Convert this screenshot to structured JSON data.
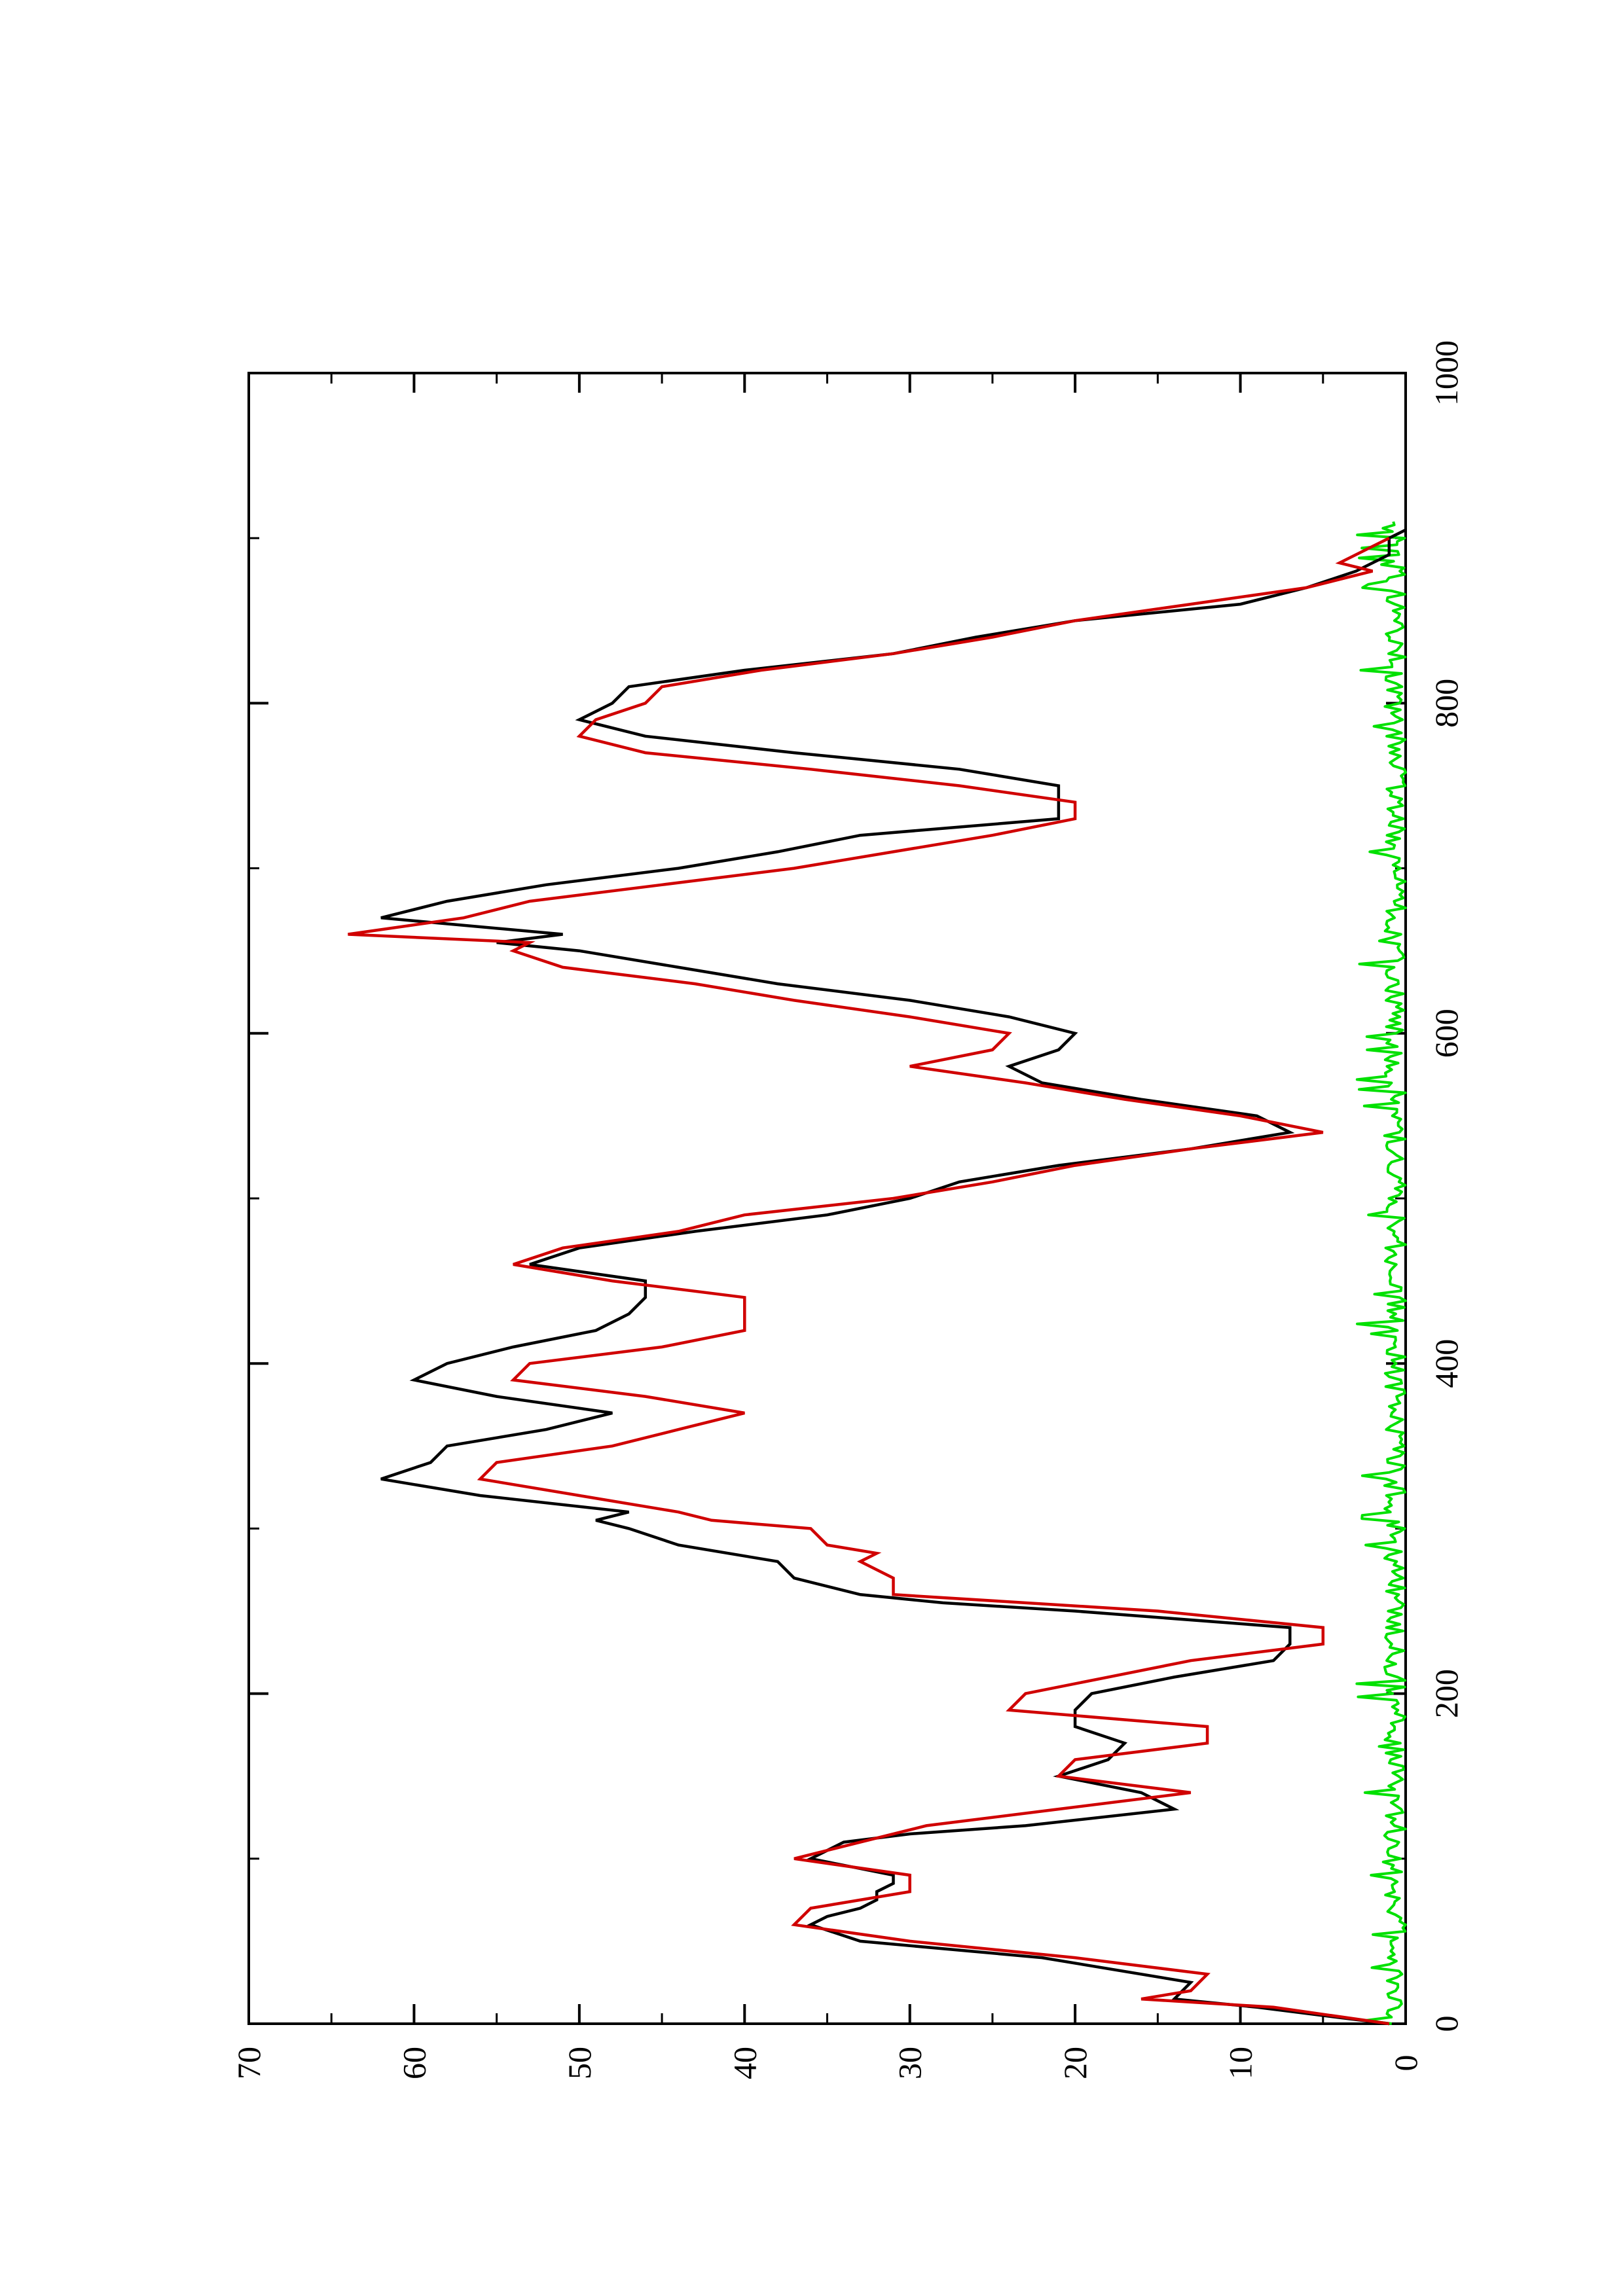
{
  "chart_data": {
    "type": "line",
    "orientation": "rotated-90-ccw",
    "title": "",
    "xlabel": "",
    "ylabel": "",
    "xlim": [
      0,
      1000
    ],
    "ylim": [
      0,
      70
    ],
    "x_ticks": [
      0,
      200,
      400,
      600,
      800,
      1000
    ],
    "x_tick_labels": [
      "0",
      "200",
      "400",
      "600",
      "800",
      "1000"
    ],
    "x_minor_ticks": [
      100,
      300,
      500,
      700,
      900
    ],
    "y_ticks": [
      0,
      10,
      20,
      30,
      40,
      50,
      60,
      70
    ],
    "y_tick_labels": [
      "0",
      "10",
      "20",
      "30",
      "40",
      "50",
      "60",
      "70"
    ],
    "y_minor_ticks": [
      5,
      15,
      25,
      35,
      45,
      55,
      65
    ],
    "grid": false,
    "legend": "none",
    "series": [
      {
        "color": "#000000",
        "x": [
          0,
          10,
          15,
          25,
          40,
          50,
          60,
          65,
          70,
          75,
          80,
          85,
          90,
          100,
          110,
          115,
          120,
          130,
          140,
          150,
          160,
          170,
          180,
          190,
          200,
          210,
          220,
          230,
          240,
          250,
          255,
          260,
          270,
          280,
          290,
          300,
          305,
          310,
          320,
          330,
          340,
          350,
          360,
          370,
          380,
          390,
          400,
          410,
          420,
          430,
          440,
          450,
          460,
          470,
          480,
          490,
          500,
          510,
          520,
          530,
          540,
          550,
          560,
          570,
          580,
          590,
          600,
          610,
          620,
          630,
          640,
          650,
          655,
          660,
          670,
          680,
          690,
          700,
          710,
          720,
          730,
          740,
          750,
          760,
          770,
          780,
          790,
          800,
          810,
          820,
          830,
          840,
          850,
          860,
          870,
          880,
          885,
          890,
          900,
          905
        ],
        "y": [
          1,
          9,
          14,
          13,
          22,
          33,
          36,
          35,
          33,
          32,
          32,
          31,
          31,
          36,
          34,
          30,
          23,
          14,
          16,
          21,
          18,
          17,
          20,
          20,
          19,
          14,
          8,
          7,
          7,
          20,
          28,
          33,
          37,
          38,
          44,
          47,
          49,
          47,
          56,
          62,
          59,
          58,
          52,
          48,
          55,
          60,
          58,
          54,
          49,
          47,
          46,
          46,
          53,
          50,
          43,
          35,
          30,
          27,
          21,
          13,
          7,
          9,
          16,
          22,
          24,
          21,
          20,
          24,
          30,
          38,
          44,
          50,
          55,
          51,
          62,
          58,
          52,
          44,
          38,
          33,
          21,
          21,
          21,
          27,
          37,
          46,
          50,
          48,
          47,
          40,
          31,
          26,
          20,
          10,
          6,
          3,
          2,
          1,
          1,
          0
        ]
      },
      {
        "color": "#d00000",
        "x": [
          0,
          10,
          15,
          20,
          30,
          40,
          50,
          60,
          70,
          80,
          90,
          100,
          110,
          120,
          130,
          140,
          150,
          160,
          170,
          180,
          190,
          200,
          210,
          220,
          230,
          240,
          250,
          260,
          270,
          280,
          285,
          290,
          300,
          305,
          310,
          320,
          330,
          340,
          350,
          360,
          370,
          380,
          390,
          400,
          410,
          420,
          430,
          440,
          450,
          460,
          470,
          480,
          490,
          500,
          510,
          520,
          530,
          540,
          550,
          560,
          570,
          580,
          590,
          600,
          610,
          620,
          630,
          640,
          650,
          655,
          660,
          670,
          680,
          690,
          700,
          710,
          720,
          730,
          740,
          750,
          760,
          770,
          780,
          790,
          800,
          810,
          820,
          830,
          840,
          850,
          860,
          870,
          880,
          885,
          890,
          895,
          900
        ],
        "y": [
          1,
          8,
          16,
          13,
          12,
          20,
          30,
          37,
          36,
          30,
          30,
          37,
          33,
          29,
          21,
          13,
          21,
          20,
          12,
          12,
          24,
          23,
          18,
          13,
          5,
          5,
          15,
          31,
          31,
          33,
          32,
          35,
          36,
          42,
          44,
          50,
          56,
          55,
          48,
          44,
          40,
          46,
          54,
          53,
          45,
          40,
          40,
          40,
          48,
          54,
          51,
          44,
          40,
          31,
          25,
          20,
          13,
          5,
          10,
          17,
          23,
          30,
          25,
          24,
          30,
          37,
          43,
          51,
          54,
          53,
          64,
          57,
          53,
          45,
          37,
          31,
          25,
          20,
          20,
          27,
          36,
          46,
          50,
          49,
          46,
          45,
          39,
          31,
          25,
          20,
          13,
          6,
          2,
          4,
          3,
          2,
          1
        ]
      },
      {
        "color": "#00e000",
        "x_start": 0,
        "x_end": 910,
        "x_step": 2,
        "value_range": [
          0,
          3
        ],
        "typical_value": 0.8
      }
    ]
  }
}
